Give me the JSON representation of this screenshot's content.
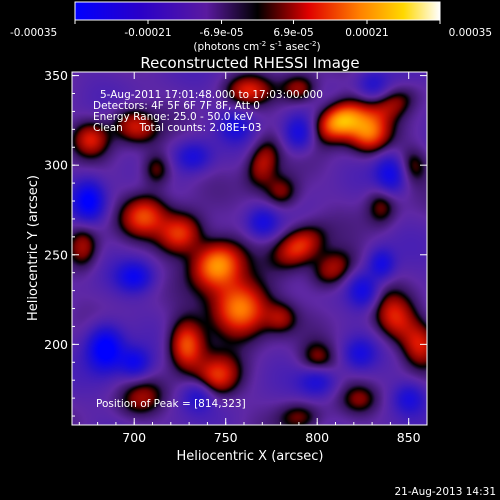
{
  "colorbar": {
    "tick_labels": [
      "-0.00035",
      "-0.00021",
      "-6.9e-05",
      "6.9e-05",
      "0.00021",
      "0.00035"
    ],
    "tick_values": [
      -0.00035,
      -0.00021,
      -6.9e-05,
      6.9e-05,
      0.00021,
      0.00035
    ],
    "units_main": "(photons cm",
    "units_exp1": "-2",
    "units_mid": " s",
    "units_exp2": "-1",
    "units_tail": " asec",
    "units_exp3": "-2",
    "units_close": ")",
    "range": [
      -0.00035,
      0.00035
    ],
    "colormap": [
      "#0000ff",
      "#2a00c8",
      "#5a1aa0",
      "#000000",
      "#e00000",
      "#ff8000",
      "#ffd800",
      "#ffffff"
    ]
  },
  "chart_data": {
    "type": "heatmap",
    "title": "Reconstructed RHESSI Image",
    "xlabel": "Heliocentric X (arcsec)",
    "ylabel": "Heliocentric Y (arcsec)",
    "xlim": [
      666,
      860
    ],
    "ylim": [
      155,
      352
    ],
    "x_ticks": [
      700,
      750,
      800,
      850
    ],
    "y_ticks": [
      200,
      250,
      300,
      350
    ],
    "x_tick_labels": [
      "700",
      "750",
      "800",
      "850"
    ],
    "y_tick_labels": [
      "200",
      "250",
      "300",
      "350"
    ],
    "annotations": {
      "time_range": "5-Aug-2011 17:01:48.000 to 17:03:00.000",
      "detectors": "Detectors: 4F 5F 6F 7F 8F, Att 0",
      "energy_range": "Energy Range: 25.0 - 50.0 keV",
      "clean_line": "Clean     Total counts: 2.08E+03",
      "peak_position": "Position of Peak = [814,323]"
    },
    "peak": [
      814,
      323
    ],
    "sources": [
      {
        "x": 812,
        "y": 325,
        "a": 1.0,
        "sx": 10,
        "sy": 7,
        "rot": -0.5
      },
      {
        "x": 828,
        "y": 318,
        "a": 0.7,
        "sx": 8,
        "sy": 8,
        "rot": 0
      },
      {
        "x": 842,
        "y": 335,
        "a": 0.4,
        "sx": 10,
        "sy": 6,
        "rot": -0.5
      },
      {
        "x": 758,
        "y": 220,
        "a": 0.95,
        "sx": 11,
        "sy": 11,
        "rot": -0.6
      },
      {
        "x": 745,
        "y": 245,
        "a": 0.9,
        "sx": 10,
        "sy": 9,
        "rot": -0.6
      },
      {
        "x": 725,
        "y": 262,
        "a": 0.7,
        "sx": 9,
        "sy": 8,
        "rot": -0.5
      },
      {
        "x": 705,
        "y": 272,
        "a": 0.6,
        "sx": 9,
        "sy": 8,
        "rot": -0.5
      },
      {
        "x": 728,
        "y": 200,
        "a": 0.75,
        "sx": 7,
        "sy": 10,
        "rot": 0
      },
      {
        "x": 745,
        "y": 182,
        "a": 0.6,
        "sx": 9,
        "sy": 8,
        "rot": -0.5
      },
      {
        "x": 790,
        "y": 255,
        "a": 0.65,
        "sx": 10,
        "sy": 7,
        "rot": -0.6
      },
      {
        "x": 808,
        "y": 242,
        "a": 0.55,
        "sx": 9,
        "sy": 7,
        "rot": -0.6
      },
      {
        "x": 842,
        "y": 215,
        "a": 0.55,
        "sx": 8,
        "sy": 10,
        "rot": -0.3
      },
      {
        "x": 856,
        "y": 200,
        "a": 0.5,
        "sx": 7,
        "sy": 9,
        "rot": 0
      },
      {
        "x": 700,
        "y": 322,
        "a": 0.55,
        "sx": 9,
        "sy": 7,
        "rot": 0.4
      },
      {
        "x": 676,
        "y": 315,
        "a": 0.5,
        "sx": 7,
        "sy": 7,
        "rot": 0
      },
      {
        "x": 712,
        "y": 298,
        "a": 0.45,
        "sx": 6,
        "sy": 7,
        "rot": 0
      },
      {
        "x": 770,
        "y": 302,
        "a": 0.5,
        "sx": 6,
        "sy": 10,
        "rot": 0.3
      },
      {
        "x": 780,
        "y": 285,
        "a": 0.45,
        "sx": 7,
        "sy": 7,
        "rot": 0
      },
      {
        "x": 762,
        "y": 342,
        "a": 0.5,
        "sx": 9,
        "sy": 6,
        "rot": 0
      },
      {
        "x": 790,
        "y": 343,
        "a": 0.45,
        "sx": 7,
        "sy": 6,
        "rot": 0
      },
      {
        "x": 672,
        "y": 255,
        "a": 0.45,
        "sx": 6,
        "sy": 9,
        "rot": 0
      },
      {
        "x": 704,
        "y": 170,
        "a": 0.35,
        "sx": 9,
        "sy": 7,
        "rot": -0.4
      },
      {
        "x": 800,
        "y": 192,
        "a": 0.4,
        "sx": 7,
        "sy": 7,
        "rot": 0
      },
      {
        "x": 835,
        "y": 278,
        "a": 0.4,
        "sx": 6,
        "sy": 8,
        "rot": 0
      },
      {
        "x": 852,
        "y": 300,
        "a": 0.35,
        "sx": 6,
        "sy": 7,
        "rot": 0
      },
      {
        "x": 780,
        "y": 215,
        "a": 0.35,
        "sx": 6,
        "sy": 6,
        "rot": 0
      },
      {
        "x": 790,
        "y": 160,
        "a": 0.35,
        "sx": 8,
        "sy": 6,
        "rot": 0
      },
      {
        "x": 823,
        "y": 170,
        "a": 0.3,
        "sx": 7,
        "sy": 6,
        "rot": 0
      },
      {
        "x": 684,
        "y": 198,
        "a": -0.85,
        "sx": 7,
        "sy": 9,
        "rot": 0
      },
      {
        "x": 700,
        "y": 190,
        "a": -0.55,
        "sx": 6,
        "sy": 6,
        "rot": 0
      },
      {
        "x": 675,
        "y": 280,
        "a": -0.7,
        "sx": 6,
        "sy": 8,
        "rot": 0
      },
      {
        "x": 700,
        "y": 238,
        "a": -0.55,
        "sx": 7,
        "sy": 6,
        "rot": 0
      },
      {
        "x": 825,
        "y": 230,
        "a": -0.55,
        "sx": 6,
        "sy": 7,
        "rot": 0
      },
      {
        "x": 840,
        "y": 295,
        "a": -0.55,
        "sx": 6,
        "sy": 8,
        "rot": 0
      },
      {
        "x": 835,
        "y": 245,
        "a": -0.5,
        "sx": 5,
        "sy": 6,
        "rot": 0
      },
      {
        "x": 790,
        "y": 318,
        "a": -0.55,
        "sx": 6,
        "sy": 7,
        "rot": 0
      },
      {
        "x": 770,
        "y": 268,
        "a": -0.45,
        "sx": 6,
        "sy": 6,
        "rot": 0
      },
      {
        "x": 800,
        "y": 180,
        "a": -0.45,
        "sx": 7,
        "sy": 6,
        "rot": 0
      },
      {
        "x": 823,
        "y": 195,
        "a": -0.4,
        "sx": 6,
        "sy": 6,
        "rot": 0
      },
      {
        "x": 732,
        "y": 305,
        "a": -0.45,
        "sx": 7,
        "sy": 6,
        "rot": 0
      },
      {
        "x": 735,
        "y": 172,
        "a": -0.4,
        "sx": 6,
        "sy": 6,
        "rot": 0
      },
      {
        "x": 850,
        "y": 170,
        "a": -0.4,
        "sx": 6,
        "sy": 6,
        "rot": 0
      },
      {
        "x": 755,
        "y": 322,
        "a": -0.4,
        "sx": 6,
        "sy": 6,
        "rot": 0
      },
      {
        "x": 830,
        "y": 345,
        "a": -0.35,
        "sx": 6,
        "sy": 6,
        "rot": 0
      }
    ]
  },
  "footer": {
    "timestamp": "21-Aug-2013 14:31"
  }
}
